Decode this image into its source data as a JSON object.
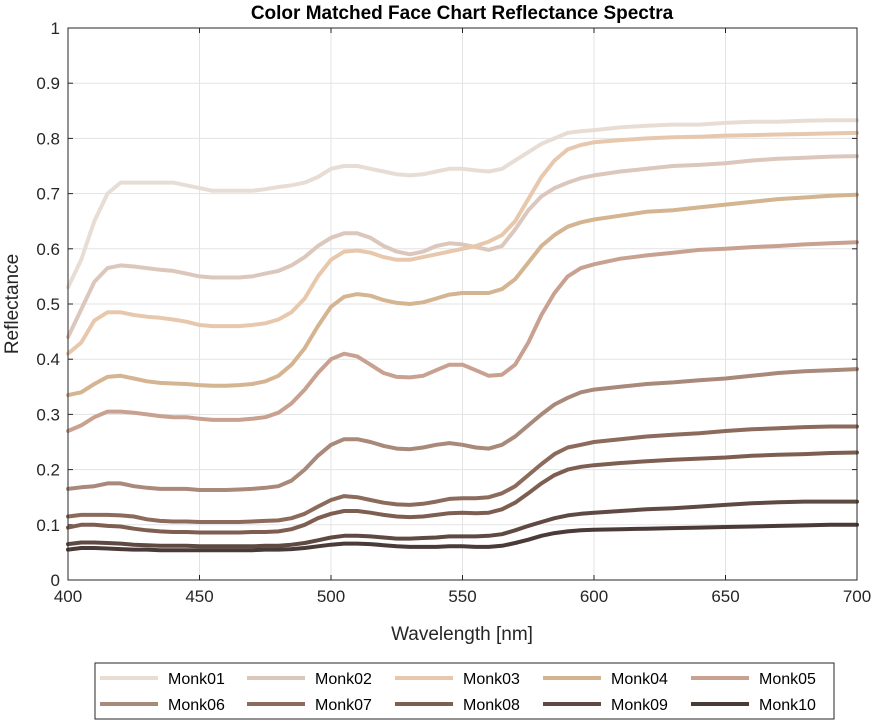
{
  "chart_data": {
    "type": "line",
    "title": "Color Matched Face Chart Reflectance Spectra",
    "xlabel": "Wavelength [nm]",
    "ylabel": "Reflectance",
    "xlim": [
      400,
      700
    ],
    "ylim": [
      0,
      1
    ],
    "xticks": [
      "400",
      "450",
      "500",
      "550",
      "600",
      "650",
      "700"
    ],
    "yticks": [
      "0",
      "0.1",
      "0.2",
      "0.3",
      "0.4",
      "0.5",
      "0.6",
      "0.7",
      "0.8",
      "0.9",
      "1"
    ],
    "grid": true,
    "legend_position": "bottom-outside",
    "x": [
      400,
      405,
      410,
      415,
      420,
      425,
      430,
      435,
      440,
      445,
      450,
      455,
      460,
      465,
      470,
      475,
      480,
      485,
      490,
      495,
      500,
      505,
      510,
      515,
      520,
      525,
      530,
      535,
      540,
      545,
      550,
      555,
      560,
      565,
      570,
      575,
      580,
      585,
      590,
      595,
      600,
      610,
      620,
      630,
      640,
      650,
      660,
      670,
      680,
      690,
      700
    ],
    "series": [
      {
        "name": "Monk01",
        "color": "#e8ddd5",
        "values": [
          0.53,
          0.58,
          0.65,
          0.7,
          0.72,
          0.72,
          0.72,
          0.72,
          0.72,
          0.715,
          0.71,
          0.705,
          0.705,
          0.705,
          0.705,
          0.708,
          0.712,
          0.715,
          0.72,
          0.73,
          0.745,
          0.75,
          0.75,
          0.745,
          0.74,
          0.735,
          0.733,
          0.735,
          0.74,
          0.745,
          0.745,
          0.742,
          0.74,
          0.745,
          0.76,
          0.775,
          0.79,
          0.8,
          0.81,
          0.813,
          0.815,
          0.82,
          0.823,
          0.825,
          0.825,
          0.828,
          0.83,
          0.83,
          0.832,
          0.833,
          0.833
        ]
      },
      {
        "name": "Monk02",
        "color": "#dcc7bc",
        "values": [
          0.44,
          0.49,
          0.54,
          0.565,
          0.57,
          0.568,
          0.565,
          0.562,
          0.56,
          0.555,
          0.55,
          0.548,
          0.548,
          0.548,
          0.55,
          0.555,
          0.56,
          0.57,
          0.585,
          0.605,
          0.62,
          0.628,
          0.628,
          0.62,
          0.605,
          0.595,
          0.59,
          0.595,
          0.605,
          0.61,
          0.608,
          0.603,
          0.598,
          0.605,
          0.635,
          0.67,
          0.695,
          0.71,
          0.72,
          0.728,
          0.733,
          0.74,
          0.745,
          0.75,
          0.752,
          0.755,
          0.76,
          0.763,
          0.765,
          0.767,
          0.768
        ]
      },
      {
        "name": "Monk03",
        "color": "#e8c8ad",
        "values": [
          0.41,
          0.43,
          0.47,
          0.485,
          0.485,
          0.48,
          0.477,
          0.475,
          0.472,
          0.468,
          0.462,
          0.46,
          0.46,
          0.46,
          0.462,
          0.465,
          0.472,
          0.485,
          0.51,
          0.55,
          0.58,
          0.595,
          0.597,
          0.593,
          0.585,
          0.58,
          0.58,
          0.585,
          0.59,
          0.595,
          0.6,
          0.605,
          0.613,
          0.625,
          0.65,
          0.69,
          0.73,
          0.76,
          0.78,
          0.788,
          0.793,
          0.797,
          0.8,
          0.802,
          0.803,
          0.805,
          0.806,
          0.807,
          0.808,
          0.809,
          0.81
        ]
      },
      {
        "name": "Monk04",
        "color": "#d4b491",
        "values": [
          0.335,
          0.34,
          0.355,
          0.368,
          0.37,
          0.365,
          0.36,
          0.357,
          0.356,
          0.355,
          0.353,
          0.352,
          0.352,
          0.353,
          0.355,
          0.36,
          0.37,
          0.39,
          0.42,
          0.46,
          0.495,
          0.513,
          0.518,
          0.515,
          0.507,
          0.502,
          0.5,
          0.503,
          0.51,
          0.517,
          0.52,
          0.52,
          0.52,
          0.527,
          0.545,
          0.575,
          0.605,
          0.625,
          0.64,
          0.648,
          0.653,
          0.66,
          0.667,
          0.67,
          0.675,
          0.68,
          0.685,
          0.69,
          0.693,
          0.696,
          0.698
        ]
      },
      {
        "name": "Monk05",
        "color": "#c9a190",
        "values": [
          0.27,
          0.28,
          0.295,
          0.305,
          0.305,
          0.303,
          0.3,
          0.297,
          0.295,
          0.295,
          0.292,
          0.29,
          0.29,
          0.29,
          0.292,
          0.295,
          0.303,
          0.32,
          0.345,
          0.375,
          0.4,
          0.41,
          0.405,
          0.39,
          0.375,
          0.368,
          0.367,
          0.37,
          0.38,
          0.39,
          0.39,
          0.38,
          0.37,
          0.372,
          0.39,
          0.43,
          0.48,
          0.52,
          0.55,
          0.565,
          0.572,
          0.582,
          0.588,
          0.593,
          0.598,
          0.6,
          0.603,
          0.605,
          0.608,
          0.61,
          0.612
        ]
      },
      {
        "name": "Monk06",
        "color": "#a8897a",
        "values": [
          0.165,
          0.168,
          0.17,
          0.175,
          0.175,
          0.17,
          0.167,
          0.165,
          0.165,
          0.165,
          0.163,
          0.163,
          0.163,
          0.164,
          0.165,
          0.167,
          0.17,
          0.18,
          0.2,
          0.225,
          0.245,
          0.255,
          0.255,
          0.25,
          0.243,
          0.238,
          0.237,
          0.24,
          0.245,
          0.248,
          0.245,
          0.24,
          0.238,
          0.245,
          0.26,
          0.28,
          0.3,
          0.318,
          0.33,
          0.34,
          0.345,
          0.35,
          0.355,
          0.358,
          0.362,
          0.365,
          0.37,
          0.375,
          0.378,
          0.38,
          0.382
        ]
      },
      {
        "name": "Monk07",
        "color": "#8c6a5c",
        "values": [
          0.115,
          0.118,
          0.118,
          0.118,
          0.117,
          0.115,
          0.11,
          0.107,
          0.106,
          0.106,
          0.105,
          0.105,
          0.105,
          0.105,
          0.106,
          0.107,
          0.108,
          0.112,
          0.12,
          0.133,
          0.145,
          0.152,
          0.15,
          0.145,
          0.14,
          0.137,
          0.136,
          0.138,
          0.142,
          0.147,
          0.148,
          0.148,
          0.15,
          0.157,
          0.17,
          0.19,
          0.21,
          0.228,
          0.24,
          0.245,
          0.25,
          0.255,
          0.26,
          0.263,
          0.266,
          0.27,
          0.273,
          0.275,
          0.277,
          0.278,
          0.278
        ]
      },
      {
        "name": "Monk08",
        "color": "#7d5e50",
        "values": [
          0.095,
          0.1,
          0.1,
          0.098,
          0.097,
          0.093,
          0.09,
          0.088,
          0.087,
          0.087,
          0.086,
          0.086,
          0.086,
          0.086,
          0.087,
          0.087,
          0.088,
          0.092,
          0.1,
          0.112,
          0.12,
          0.125,
          0.125,
          0.122,
          0.118,
          0.115,
          0.114,
          0.115,
          0.118,
          0.121,
          0.122,
          0.121,
          0.122,
          0.128,
          0.14,
          0.157,
          0.175,
          0.19,
          0.2,
          0.205,
          0.208,
          0.212,
          0.215,
          0.218,
          0.22,
          0.222,
          0.225,
          0.227,
          0.228,
          0.23,
          0.231
        ]
      },
      {
        "name": "Monk09",
        "color": "#5e4a42",
        "values": [
          0.065,
          0.068,
          0.068,
          0.067,
          0.066,
          0.064,
          0.063,
          0.062,
          0.062,
          0.062,
          0.061,
          0.061,
          0.061,
          0.061,
          0.061,
          0.062,
          0.062,
          0.064,
          0.067,
          0.072,
          0.077,
          0.08,
          0.08,
          0.079,
          0.077,
          0.075,
          0.075,
          0.076,
          0.077,
          0.079,
          0.079,
          0.079,
          0.08,
          0.083,
          0.09,
          0.098,
          0.105,
          0.112,
          0.117,
          0.12,
          0.122,
          0.125,
          0.128,
          0.13,
          0.133,
          0.136,
          0.139,
          0.141,
          0.142,
          0.142,
          0.142
        ]
      },
      {
        "name": "Monk10",
        "color": "#4a3a38",
        "values": [
          0.055,
          0.058,
          0.058,
          0.057,
          0.056,
          0.055,
          0.055,
          0.054,
          0.054,
          0.054,
          0.054,
          0.054,
          0.054,
          0.054,
          0.054,
          0.055,
          0.055,
          0.056,
          0.058,
          0.061,
          0.064,
          0.066,
          0.066,
          0.065,
          0.063,
          0.061,
          0.06,
          0.06,
          0.06,
          0.061,
          0.061,
          0.06,
          0.06,
          0.062,
          0.067,
          0.073,
          0.08,
          0.085,
          0.088,
          0.09,
          0.091,
          0.092,
          0.093,
          0.094,
          0.095,
          0.096,
          0.097,
          0.098,
          0.099,
          0.1,
          0.1
        ]
      }
    ]
  }
}
